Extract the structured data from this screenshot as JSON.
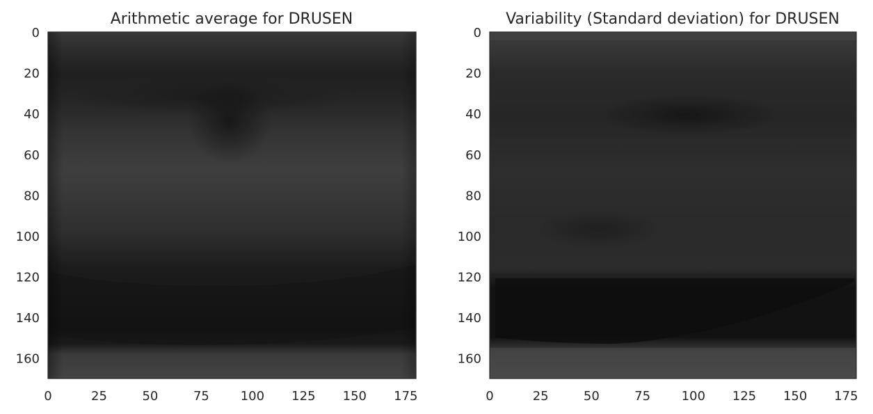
{
  "chart_data": [
    {
      "type": "heatmap",
      "title": "Arithmetic average for DRUSEN",
      "xlabel": "",
      "ylabel": "",
      "xlim": [
        0,
        180
      ],
      "ylim": [
        170,
        0
      ],
      "x_ticks": [
        0,
        25,
        50,
        75,
        100,
        125,
        150,
        175
      ],
      "y_ticks": [
        0,
        20,
        40,
        60,
        80,
        100,
        120,
        140,
        160
      ],
      "colormap": "gray",
      "grid": false,
      "background_color": "#262626"
    },
    {
      "type": "heatmap",
      "title": "Variability (Standard deviation) for DRUSEN",
      "xlabel": "",
      "ylabel": "",
      "xlim": [
        0,
        180
      ],
      "ylim": [
        170,
        0
      ],
      "x_ticks": [
        0,
        25,
        50,
        75,
        100,
        125,
        150,
        175
      ],
      "y_ticks": [
        0,
        20,
        40,
        60,
        80,
        100,
        120,
        140,
        160
      ],
      "colormap": "gray",
      "grid": false,
      "background_color": "#2a2a2a"
    }
  ]
}
